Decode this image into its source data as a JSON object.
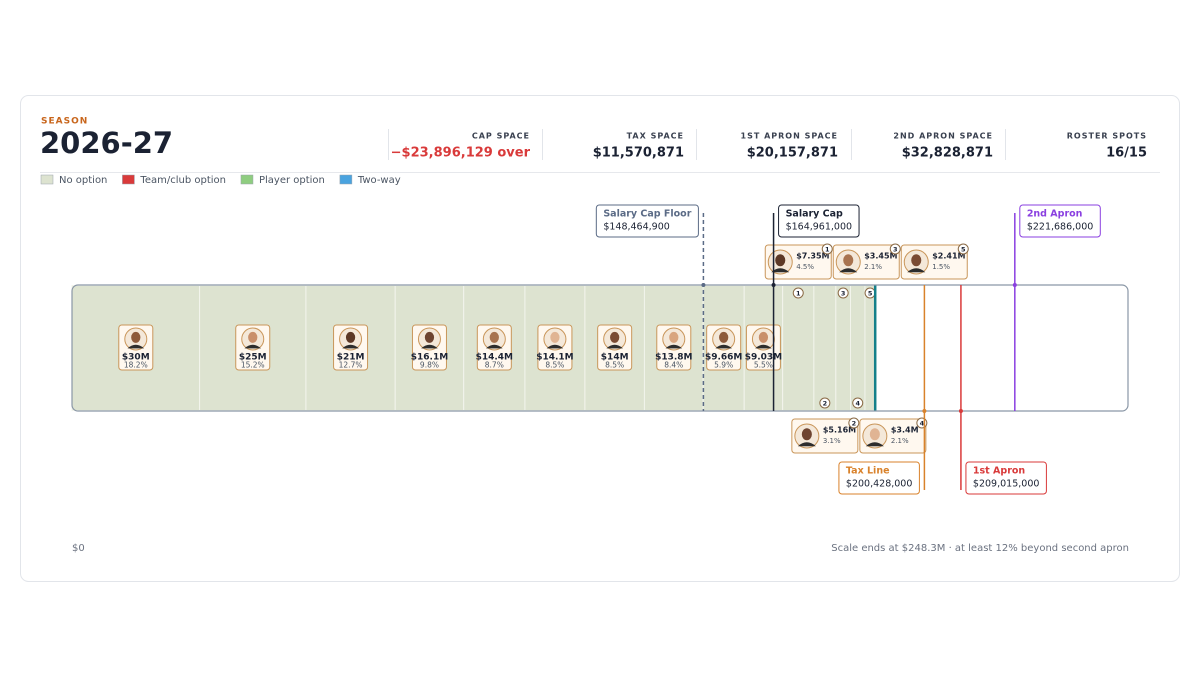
{
  "header": {
    "season_label": "SEASON",
    "season": "2026-27",
    "stats": [
      {
        "label": "CAP SPACE",
        "value": "−$23,896,129 over"
      },
      {
        "label": "TAX SPACE",
        "value": "$11,570,871"
      },
      {
        "label": "1ST APRON SPACE",
        "value": "$20,157,871"
      },
      {
        "label": "2ND APRON SPACE",
        "value": "$32,828,871"
      },
      {
        "label": "ROSTER SPOTS",
        "value": "16/15"
      }
    ]
  },
  "legend": [
    {
      "label": "No option",
      "color": "#dde3d0"
    },
    {
      "label": "Team/club option",
      "color": "#d93a3a"
    },
    {
      "label": "Player option",
      "color": "#8fcd80"
    },
    {
      "label": "Two-way",
      "color": "#4aa3df"
    }
  ],
  "chart_data": {
    "type": "salary-bar",
    "xlim": [
      0,
      248300000
    ],
    "min_label": "$0",
    "note": "Scale ends at $248.3M · at least 12% beyond second apron",
    "total_color": "#13808a",
    "players": [
      {
        "value": 30000000,
        "label": "$30M",
        "pct": "18.2%"
      },
      {
        "value": 25000000,
        "label": "$25M",
        "pct": "15.2%"
      },
      {
        "value": 21000000,
        "label": "$21M",
        "pct": "12.7%"
      },
      {
        "value": 16100000,
        "label": "$16.1M",
        "pct": "9.8%"
      },
      {
        "value": 14400000,
        "label": "$14.4M",
        "pct": "8.7%"
      },
      {
        "value": 14100000,
        "label": "$14.1M",
        "pct": "8.5%"
      },
      {
        "value": 14000000,
        "label": "$14M",
        "pct": "8.5%"
      },
      {
        "value": 13800000,
        "label": "$13.8M",
        "pct": "8.4%"
      },
      {
        "value": 9660000,
        "label": "$9.66M",
        "pct": "5.9%"
      },
      {
        "value": 9030000,
        "label": "$9.03M",
        "pct": "5.5%"
      },
      {
        "value": 7350000,
        "label": "$7.35M",
        "pct": "4.5%",
        "marker": "1"
      },
      {
        "value": 5160000,
        "label": "$5.16M",
        "pct": "3.1%",
        "marker": "2"
      },
      {
        "value": 3450000,
        "label": "$3.45M",
        "pct": "2.1%",
        "marker": "3"
      },
      {
        "value": 3400000,
        "label": "$3.4M",
        "pct": "2.1%",
        "marker": "4"
      },
      {
        "value": 2410000,
        "label": "$2.41M",
        "pct": "1.5%",
        "marker": "5"
      }
    ],
    "thresholds": [
      {
        "name": "Salary Cap Floor",
        "value": 148464900,
        "label": "$148,464,900",
        "color": "#5b6b86"
      },
      {
        "name": "Salary Cap",
        "value": 164961000,
        "label": "$164,961,000",
        "color": "#1b2233"
      },
      {
        "name": "Tax Line",
        "value": 200428000,
        "label": "$200,428,000",
        "color": "#d9822b"
      },
      {
        "name": "1st Apron",
        "value": 209015000,
        "label": "$209,015,000",
        "color": "#d93a3a"
      },
      {
        "name": "2nd Apron",
        "value": 221686000,
        "label": "$221,686,000",
        "color": "#8a3fe0"
      }
    ]
  }
}
